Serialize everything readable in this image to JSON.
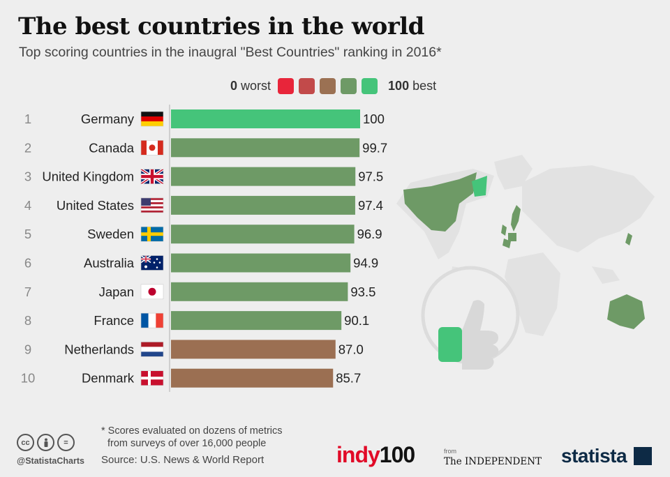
{
  "title": "The best countries in the world",
  "subtitle": "Top scoring countries in the inaugral \"Best Countries\" ranking in 2016*",
  "legend": {
    "worst_value": "0",
    "worst_text": "worst",
    "best_value": "100",
    "best_text": "best",
    "colors": [
      "#e8253a",
      "#c24a4a",
      "#9b7153",
      "#6e9a66",
      "#45c47a"
    ]
  },
  "chart_data": {
    "type": "bar",
    "orientation": "horizontal",
    "categories": [
      "Germany",
      "Canada",
      "United Kingdom",
      "United States",
      "Sweden",
      "Australia",
      "Japan",
      "France",
      "Netherlands",
      "Denmark"
    ],
    "ranks": [
      "1",
      "2",
      "3",
      "4",
      "5",
      "6",
      "7",
      "8",
      "9",
      "10"
    ],
    "values": [
      100,
      99.7,
      97.5,
      97.4,
      96.9,
      94.9,
      93.5,
      90.1,
      87.0,
      85.7
    ],
    "value_labels": [
      "100",
      "99.7",
      "97.5",
      "97.4",
      "96.9",
      "94.9",
      "93.5",
      "90.1",
      "87.0",
      "85.7"
    ],
    "bar_colors": [
      "#45c47a",
      "#6e9a66",
      "#6e9a66",
      "#6e9a66",
      "#6e9a66",
      "#6e9a66",
      "#6e9a66",
      "#6e9a66",
      "#9b6f52",
      "#9b6f52"
    ],
    "flags": [
      "germany-flag",
      "canada-flag",
      "uk-flag",
      "usa-flag",
      "sweden-flag",
      "australia-flag",
      "japan-flag",
      "france-flag",
      "netherlands-flag",
      "denmark-flag"
    ],
    "xlim": [
      0,
      100
    ],
    "grid": false,
    "legend_position": "top"
  },
  "footnote_line1": "* Scores evaluated on dozens of metrics",
  "footnote_line2": "from surveys of over 16,000 people",
  "source": "Source: U.S. News & World Report",
  "handle": "@StatistaCharts",
  "cc_icons": [
    "cc",
    "by",
    "="
  ],
  "logos": {
    "indy_part1": "indy",
    "indy_part2": "100",
    "from": "from",
    "independent": "The INDEPENDENT",
    "statista": "statista"
  }
}
